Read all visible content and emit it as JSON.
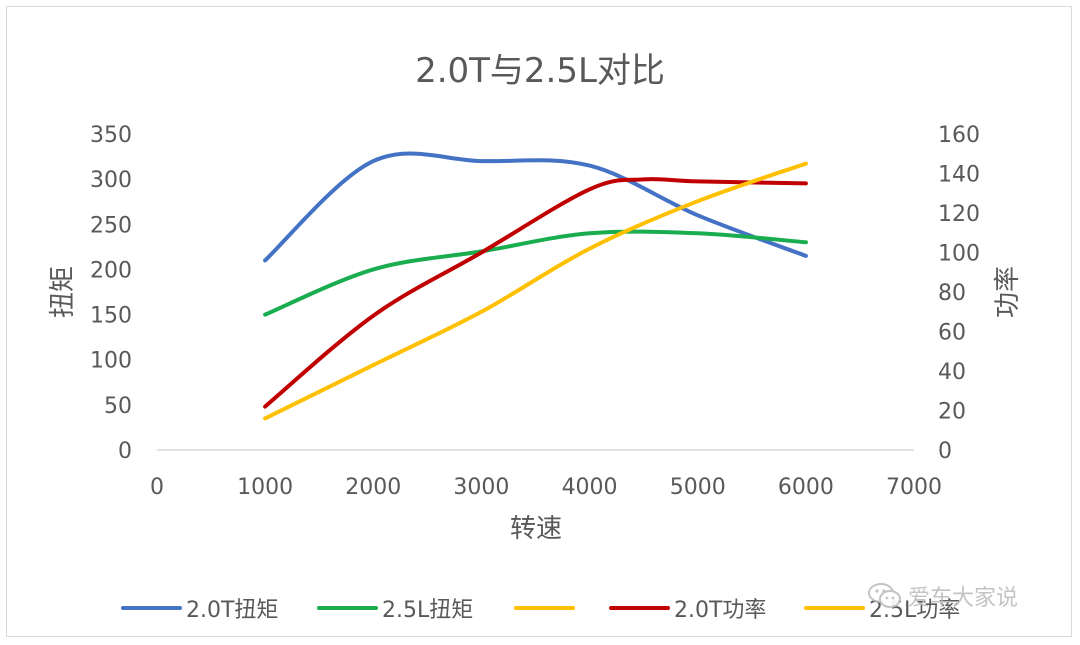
{
  "chart_data": {
    "type": "line",
    "title": "2.0T与2.5L对比",
    "xlabel": "转速",
    "ylabel": "扭矩",
    "y2label": "功率",
    "xlim": [
      0,
      7000
    ],
    "ylim": [
      0,
      350
    ],
    "y2lim": [
      0,
      160
    ],
    "x_ticks": [
      "0",
      "1000",
      "2000",
      "3000",
      "4000",
      "5000",
      "6000",
      "7000"
    ],
    "y_ticks": [
      "0",
      "50",
      "100",
      "150",
      "200",
      "250",
      "300",
      "350"
    ],
    "y2_ticks": [
      "0",
      "20",
      "40",
      "60",
      "80",
      "100",
      "120",
      "140",
      "160"
    ],
    "grid": false,
    "legend_position": "bottom",
    "colors": {
      "torque_20T": "#4472c4",
      "torque_25L": "#19ad50",
      "power_20T": "#c00000",
      "power_25L": "#ffc000"
    },
    "series": [
      {
        "name": "2.0T扭矩",
        "axis": "left",
        "color": "#4472c4",
        "x": [
          1000,
          2000,
          3000,
          4000,
          5000,
          6000
        ],
        "y": [
          210,
          320,
          320,
          315,
          260,
          215
        ]
      },
      {
        "name": "2.5L扭矩",
        "axis": "left",
        "color": "#19ad50",
        "x": [
          1000,
          2000,
          3000,
          4000,
          5000,
          6000
        ],
        "y": [
          150,
          200,
          220,
          240,
          240,
          230
        ]
      },
      {
        "name": "2.0T功率",
        "axis": "right",
        "color": "#c00000",
        "x": [
          1000,
          2000,
          3000,
          4000,
          4500,
          5000,
          6000
        ],
        "y": [
          22,
          68,
          100,
          132,
          137,
          136,
          135
        ]
      },
      {
        "name": "2.5L功率",
        "axis": "right",
        "color": "#ffc000",
        "x": [
          1000,
          2000,
          3000,
          4000,
          5000,
          6000
        ],
        "y": [
          16,
          43,
          70,
          102,
          126,
          145
        ]
      }
    ],
    "legend": [
      {
        "label": "2.0T扭矩",
        "color": "#4472c4"
      },
      {
        "label": "2.5L扭矩",
        "color": "#19ad50"
      },
      {
        "label": "",
        "color": "#ffc000"
      },
      {
        "label": "2.0T功率",
        "color": "#c00000"
      },
      {
        "label": "2.5L功率",
        "color": "#ffc000"
      }
    ]
  },
  "watermark": {
    "text": "爱车大家说",
    "icon": "wechat-icon"
  }
}
